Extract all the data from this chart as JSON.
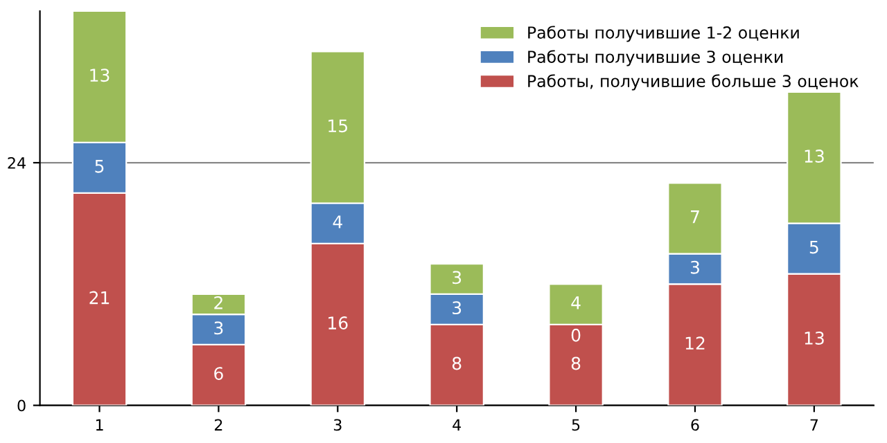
{
  "chart_data": {
    "type": "bar",
    "stacked": true,
    "categories": [
      "1",
      "2",
      "3",
      "4",
      "5",
      "6",
      "7"
    ],
    "series": [
      {
        "name": "Работы, получившие больше 3 оценок",
        "color": "#c0504d",
        "values": [
          21,
          6,
          16,
          8,
          8,
          12,
          13
        ]
      },
      {
        "name": "Работы получившие 3 оценки",
        "color": "#4f81bd",
        "values": [
          5,
          3,
          4,
          3,
          0,
          3,
          5
        ]
      },
      {
        "name": "Работы получившие 1-2 оценки",
        "color": "#9bbb59",
        "values": [
          13,
          2,
          15,
          3,
          4,
          7,
          13
        ]
      }
    ],
    "ylim": [
      0,
      39
    ],
    "yticks": [
      0,
      24
    ],
    "grid": "y",
    "legend": "top right",
    "data_labels": true
  }
}
